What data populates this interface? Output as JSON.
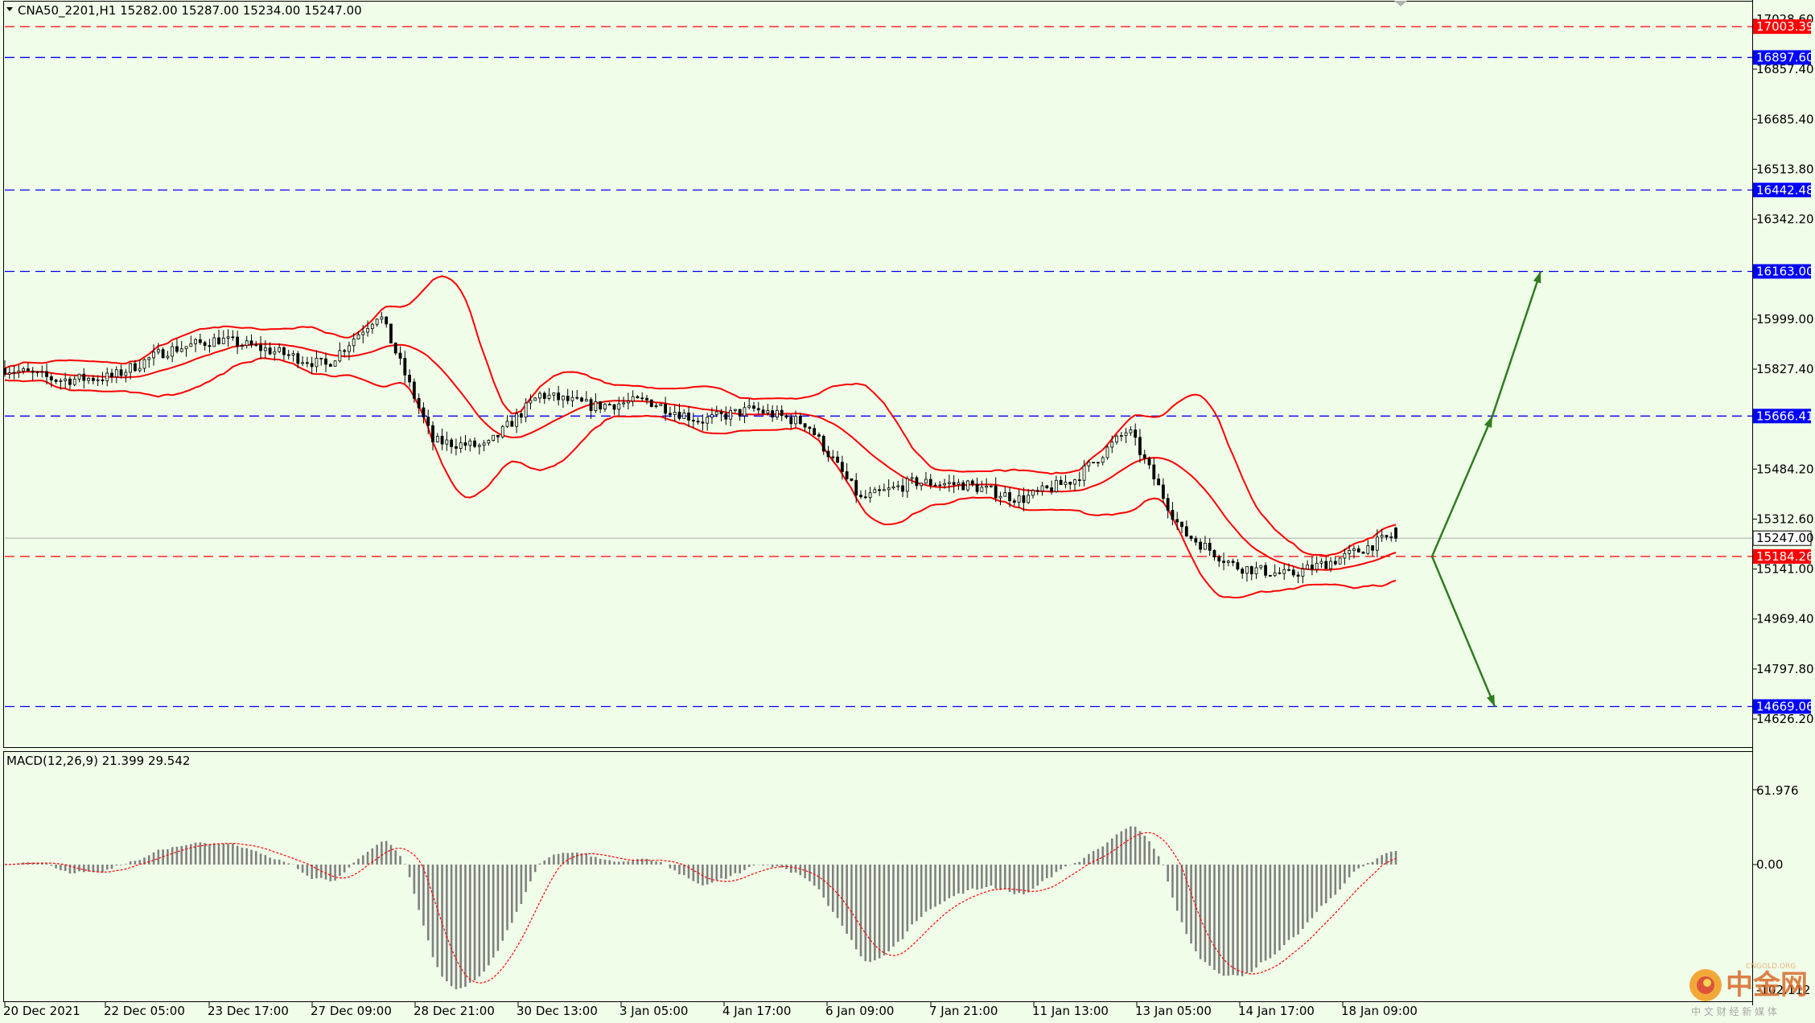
{
  "header": {
    "symbol_label": "CNA50_2201,H1  15282.00 15287.00 15234.00 15247.00"
  },
  "macd": {
    "label": "MACD(12,26,9) 21.399 29.542",
    "axis": [
      "61.976",
      "0.00",
      "-102.112"
    ]
  },
  "price_axis": [
    "17028.60",
    "16857.40",
    "16685.40",
    "16513.80",
    "16342.20",
    "15999.00",
    "15827.40",
    "15484.20",
    "15312.60",
    "15141.00",
    "14969.40",
    "14797.80",
    "14626.20"
  ],
  "levels": [
    {
      "label": "17003.39",
      "style": "red-dashed",
      "color": "#ff0000"
    },
    {
      "label": "16897.60",
      "style": "blue-dashed",
      "color": "#0000ff"
    },
    {
      "label": "16442.48",
      "style": "blue-dashed",
      "color": "#0000ff"
    },
    {
      "label": "16163.00",
      "style": "blue-dashed",
      "color": "#0000ff"
    },
    {
      "label": "15666.41",
      "style": "blue-dashed",
      "color": "#0000ff"
    },
    {
      "label": "15247.00",
      "style": "current-price",
      "color": "#c0c0c0"
    },
    {
      "label": "15184.26",
      "style": "red-dashed",
      "color": "#ff0000"
    },
    {
      "label": "14669.06",
      "style": "blue-dashed",
      "color": "#0000ff"
    }
  ],
  "time_axis": [
    "20 Dec 2021",
    "22 Dec 05:00",
    "23 Dec 17:00",
    "27 Dec 09:00",
    "28 Dec 21:00",
    "30 Dec 13:00",
    "3 Jan 05:00",
    "4 Jan 17:00",
    "6 Jan 09:00",
    "7 Jan 21:00",
    "11 Jan 13:00",
    "13 Jan 05:00",
    "14 Jan 17:00",
    "18 Jan 09:00"
  ],
  "watermark": {
    "name": "中金网",
    "tagline": "中 文 财 经 新 媒 体",
    "url": "CNGOLD.ORG"
  },
  "colors": {
    "background": "#f0fde9",
    "bollinger": "#ff0000",
    "candle": "#000000",
    "macd_hist": "#808080",
    "macd_signal": "#ff0000",
    "arrow": "#2e7d1e"
  },
  "chart_data": {
    "type": "candlestick",
    "symbol": "CNA50_2201",
    "timeframe": "H1",
    "last_ohlc": {
      "open": 15282.0,
      "high": 15287.0,
      "low": 15234.0,
      "close": 15247.0
    },
    "indicators": [
      "Bollinger Bands",
      "MACD(12,26,9)"
    ],
    "macd_values": {
      "macd": 21.399,
      "signal": 29.542
    },
    "price_range": [
      14580,
      17060
    ],
    "path_close": [
      {
        "t": "20 Dec 2021",
        "close": 15830
      },
      {
        "t": "21 Dec",
        "close": 15790
      },
      {
        "t": "22 Dec 05:00",
        "close": 15800
      },
      {
        "t": "23 Dec 05:00",
        "close": 15890
      },
      {
        "t": "23 Dec 17:00",
        "close": 15930
      },
      {
        "t": "24 Dec",
        "close": 15890
      },
      {
        "t": "27 Dec 09:00",
        "close": 15840
      },
      {
        "t": "28 Dec 05:00",
        "close": 16020
      },
      {
        "t": "28 Dec 21:00",
        "close": 15580
      },
      {
        "t": "29 Dec",
        "close": 15560
      },
      {
        "t": "30 Dec 13:00",
        "close": 15740
      },
      {
        "t": "31 Dec",
        "close": 15700
      },
      {
        "t": "3 Jan 05:00",
        "close": 15720
      },
      {
        "t": "3 Jan 17:00",
        "close": 15650
      },
      {
        "t": "4 Jan 17:00",
        "close": 15690
      },
      {
        "t": "5 Jan",
        "close": 15640
      },
      {
        "t": "6 Jan 09:00",
        "close": 15380
      },
      {
        "t": "7 Jan 09:00",
        "close": 15440
      },
      {
        "t": "7 Jan 21:00",
        "close": 15430
      },
      {
        "t": "10 Jan",
        "close": 15380
      },
      {
        "t": "11 Jan 13:00",
        "close": 15450
      },
      {
        "t": "12 Jan",
        "close": 15620
      },
      {
        "t": "13 Jan 05:00",
        "close": 15270
      },
      {
        "t": "13 Jan 17:00",
        "close": 15150
      },
      {
        "t": "14 Jan 17:00",
        "close": 15120
      },
      {
        "t": "17 Jan",
        "close": 15180
      },
      {
        "t": "18 Jan 09:00",
        "close": 15260
      }
    ],
    "projection_arrows": [
      {
        "from": 15184.26,
        "via": 15666.41,
        "to": 16163.0,
        "direction": "up"
      },
      {
        "from": 15184.26,
        "to": 14669.06,
        "direction": "down"
      }
    ]
  }
}
